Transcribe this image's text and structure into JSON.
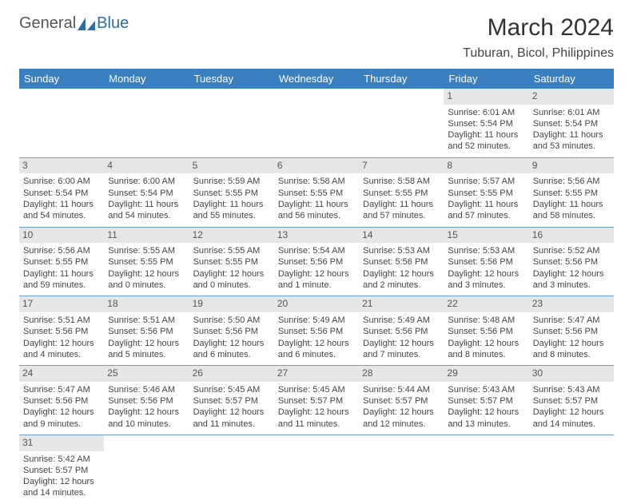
{
  "logo": {
    "part1": "General",
    "part2": "Blue"
  },
  "title": "March 2024",
  "location": "Tuburan, Bicol, Philippines",
  "header_bg": "#3a7fc0",
  "header_fg": "#ffffff",
  "daynum_bg": "#e6e6e6",
  "divider_color": "#6a9fcf",
  "dayNames": [
    "Sunday",
    "Monday",
    "Tuesday",
    "Wednesday",
    "Thursday",
    "Friday",
    "Saturday"
  ],
  "weeks": [
    [
      null,
      null,
      null,
      null,
      null,
      {
        "d": "1",
        "sr": "Sunrise: 6:01 AM",
        "ss": "Sunset: 5:54 PM",
        "dl1": "Daylight: 11 hours",
        "dl2": "and 52 minutes."
      },
      {
        "d": "2",
        "sr": "Sunrise: 6:01 AM",
        "ss": "Sunset: 5:54 PM",
        "dl1": "Daylight: 11 hours",
        "dl2": "and 53 minutes."
      }
    ],
    [
      {
        "d": "3",
        "sr": "Sunrise: 6:00 AM",
        "ss": "Sunset: 5:54 PM",
        "dl1": "Daylight: 11 hours",
        "dl2": "and 54 minutes."
      },
      {
        "d": "4",
        "sr": "Sunrise: 6:00 AM",
        "ss": "Sunset: 5:54 PM",
        "dl1": "Daylight: 11 hours",
        "dl2": "and 54 minutes."
      },
      {
        "d": "5",
        "sr": "Sunrise: 5:59 AM",
        "ss": "Sunset: 5:55 PM",
        "dl1": "Daylight: 11 hours",
        "dl2": "and 55 minutes."
      },
      {
        "d": "6",
        "sr": "Sunrise: 5:58 AM",
        "ss": "Sunset: 5:55 PM",
        "dl1": "Daylight: 11 hours",
        "dl2": "and 56 minutes."
      },
      {
        "d": "7",
        "sr": "Sunrise: 5:58 AM",
        "ss": "Sunset: 5:55 PM",
        "dl1": "Daylight: 11 hours",
        "dl2": "and 57 minutes."
      },
      {
        "d": "8",
        "sr": "Sunrise: 5:57 AM",
        "ss": "Sunset: 5:55 PM",
        "dl1": "Daylight: 11 hours",
        "dl2": "and 57 minutes."
      },
      {
        "d": "9",
        "sr": "Sunrise: 5:56 AM",
        "ss": "Sunset: 5:55 PM",
        "dl1": "Daylight: 11 hours",
        "dl2": "and 58 minutes."
      }
    ],
    [
      {
        "d": "10",
        "sr": "Sunrise: 5:56 AM",
        "ss": "Sunset: 5:55 PM",
        "dl1": "Daylight: 11 hours",
        "dl2": "and 59 minutes."
      },
      {
        "d": "11",
        "sr": "Sunrise: 5:55 AM",
        "ss": "Sunset: 5:55 PM",
        "dl1": "Daylight: 12 hours",
        "dl2": "and 0 minutes."
      },
      {
        "d": "12",
        "sr": "Sunrise: 5:55 AM",
        "ss": "Sunset: 5:55 PM",
        "dl1": "Daylight: 12 hours",
        "dl2": "and 0 minutes."
      },
      {
        "d": "13",
        "sr": "Sunrise: 5:54 AM",
        "ss": "Sunset: 5:56 PM",
        "dl1": "Daylight: 12 hours",
        "dl2": "and 1 minute."
      },
      {
        "d": "14",
        "sr": "Sunrise: 5:53 AM",
        "ss": "Sunset: 5:56 PM",
        "dl1": "Daylight: 12 hours",
        "dl2": "and 2 minutes."
      },
      {
        "d": "15",
        "sr": "Sunrise: 5:53 AM",
        "ss": "Sunset: 5:56 PM",
        "dl1": "Daylight: 12 hours",
        "dl2": "and 3 minutes."
      },
      {
        "d": "16",
        "sr": "Sunrise: 5:52 AM",
        "ss": "Sunset: 5:56 PM",
        "dl1": "Daylight: 12 hours",
        "dl2": "and 3 minutes."
      }
    ],
    [
      {
        "d": "17",
        "sr": "Sunrise: 5:51 AM",
        "ss": "Sunset: 5:56 PM",
        "dl1": "Daylight: 12 hours",
        "dl2": "and 4 minutes."
      },
      {
        "d": "18",
        "sr": "Sunrise: 5:51 AM",
        "ss": "Sunset: 5:56 PM",
        "dl1": "Daylight: 12 hours",
        "dl2": "and 5 minutes."
      },
      {
        "d": "19",
        "sr": "Sunrise: 5:50 AM",
        "ss": "Sunset: 5:56 PM",
        "dl1": "Daylight: 12 hours",
        "dl2": "and 6 minutes."
      },
      {
        "d": "20",
        "sr": "Sunrise: 5:49 AM",
        "ss": "Sunset: 5:56 PM",
        "dl1": "Daylight: 12 hours",
        "dl2": "and 6 minutes."
      },
      {
        "d": "21",
        "sr": "Sunrise: 5:49 AM",
        "ss": "Sunset: 5:56 PM",
        "dl1": "Daylight: 12 hours",
        "dl2": "and 7 minutes."
      },
      {
        "d": "22",
        "sr": "Sunrise: 5:48 AM",
        "ss": "Sunset: 5:56 PM",
        "dl1": "Daylight: 12 hours",
        "dl2": "and 8 minutes."
      },
      {
        "d": "23",
        "sr": "Sunrise: 5:47 AM",
        "ss": "Sunset: 5:56 PM",
        "dl1": "Daylight: 12 hours",
        "dl2": "and 8 minutes."
      }
    ],
    [
      {
        "d": "24",
        "sr": "Sunrise: 5:47 AM",
        "ss": "Sunset: 5:56 PM",
        "dl1": "Daylight: 12 hours",
        "dl2": "and 9 minutes."
      },
      {
        "d": "25",
        "sr": "Sunrise: 5:46 AM",
        "ss": "Sunset: 5:56 PM",
        "dl1": "Daylight: 12 hours",
        "dl2": "and 10 minutes."
      },
      {
        "d": "26",
        "sr": "Sunrise: 5:45 AM",
        "ss": "Sunset: 5:57 PM",
        "dl1": "Daylight: 12 hours",
        "dl2": "and 11 minutes."
      },
      {
        "d": "27",
        "sr": "Sunrise: 5:45 AM",
        "ss": "Sunset: 5:57 PM",
        "dl1": "Daylight: 12 hours",
        "dl2": "and 11 minutes."
      },
      {
        "d": "28",
        "sr": "Sunrise: 5:44 AM",
        "ss": "Sunset: 5:57 PM",
        "dl1": "Daylight: 12 hours",
        "dl2": "and 12 minutes."
      },
      {
        "d": "29",
        "sr": "Sunrise: 5:43 AM",
        "ss": "Sunset: 5:57 PM",
        "dl1": "Daylight: 12 hours",
        "dl2": "and 13 minutes."
      },
      {
        "d": "30",
        "sr": "Sunrise: 5:43 AM",
        "ss": "Sunset: 5:57 PM",
        "dl1": "Daylight: 12 hours",
        "dl2": "and 14 minutes."
      }
    ],
    [
      {
        "d": "31",
        "sr": "Sunrise: 5:42 AM",
        "ss": "Sunset: 5:57 PM",
        "dl1": "Daylight: 12 hours",
        "dl2": "and 14 minutes."
      },
      null,
      null,
      null,
      null,
      null,
      null
    ]
  ]
}
